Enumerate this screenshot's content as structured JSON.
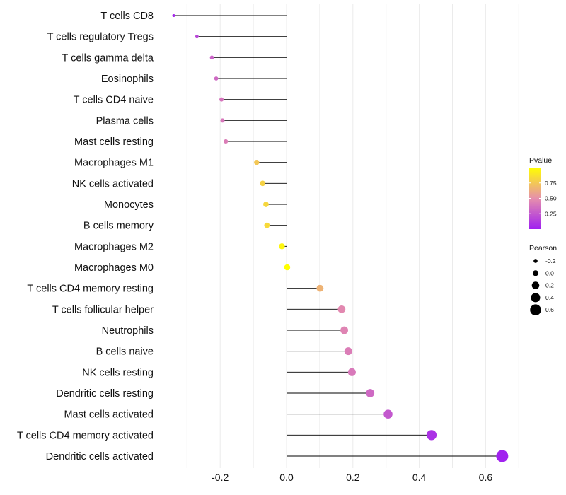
{
  "chart_data": {
    "type": "lollipop",
    "xlim": [
      -0.38,
      0.7
    ],
    "x_ticks": [
      -0.2,
      0.0,
      0.2,
      0.4,
      0.6
    ],
    "x_tick_labels": [
      "-0.2",
      "0.0",
      "0.2",
      "0.4",
      "0.6"
    ],
    "grid": true,
    "legend_placement": "right",
    "categories": [
      "T cells CD8",
      "T cells regulatory  Tregs",
      "T cells gamma delta",
      "Eosinophils",
      "T cells CD4 naive",
      "Plasma cells",
      "Mast cells resting",
      "Macrophages M1",
      "NK cells activated",
      "Monocytes",
      "B cells memory",
      "Macrophages M2",
      "Macrophages M0",
      "T cells CD4 memory resting",
      "T cells follicular helper",
      "Neutrophils",
      "B cells naive",
      "NK cells resting",
      "Dendritic cells resting",
      "Mast cells activated",
      "T cells CD4 memory activated",
      "Dendritic cells activated"
    ],
    "pearson": [
      -0.34,
      -0.27,
      -0.225,
      -0.212,
      -0.196,
      -0.193,
      -0.183,
      -0.09,
      -0.072,
      -0.062,
      -0.059,
      -0.014,
      0.002,
      0.101,
      0.166,
      0.174,
      0.186,
      0.197,
      0.252,
      0.306,
      0.437,
      0.65
    ],
    "pvalue": [
      0.03,
      0.18,
      0.3,
      0.33,
      0.38,
      0.39,
      0.42,
      0.75,
      0.8,
      0.82,
      0.83,
      0.96,
      1.0,
      0.66,
      0.47,
      0.45,
      0.42,
      0.4,
      0.33,
      0.25,
      0.08,
      0.01
    ],
    "color_legend": {
      "title": "Pvalue",
      "range": [
        0.0,
        1.0
      ],
      "ticks": [
        0.25,
        0.5,
        0.75
      ],
      "tick_labels": [
        "0.25",
        "0.50",
        "0.75"
      ],
      "low_color": "#a020f0",
      "mid_color": "#e68fac",
      "high_color": "#ffff00"
    },
    "size_legend": {
      "title": "Pearson",
      "values": [
        -0.2,
        0.0,
        0.2,
        0.4,
        0.6
      ],
      "labels": [
        "-0.2",
        "0.0",
        "0.2",
        "0.4",
        "0.6"
      ]
    },
    "colors": {
      "segment": "#000000",
      "grid": "#ebebeb",
      "legend_dot": "#000000"
    }
  }
}
